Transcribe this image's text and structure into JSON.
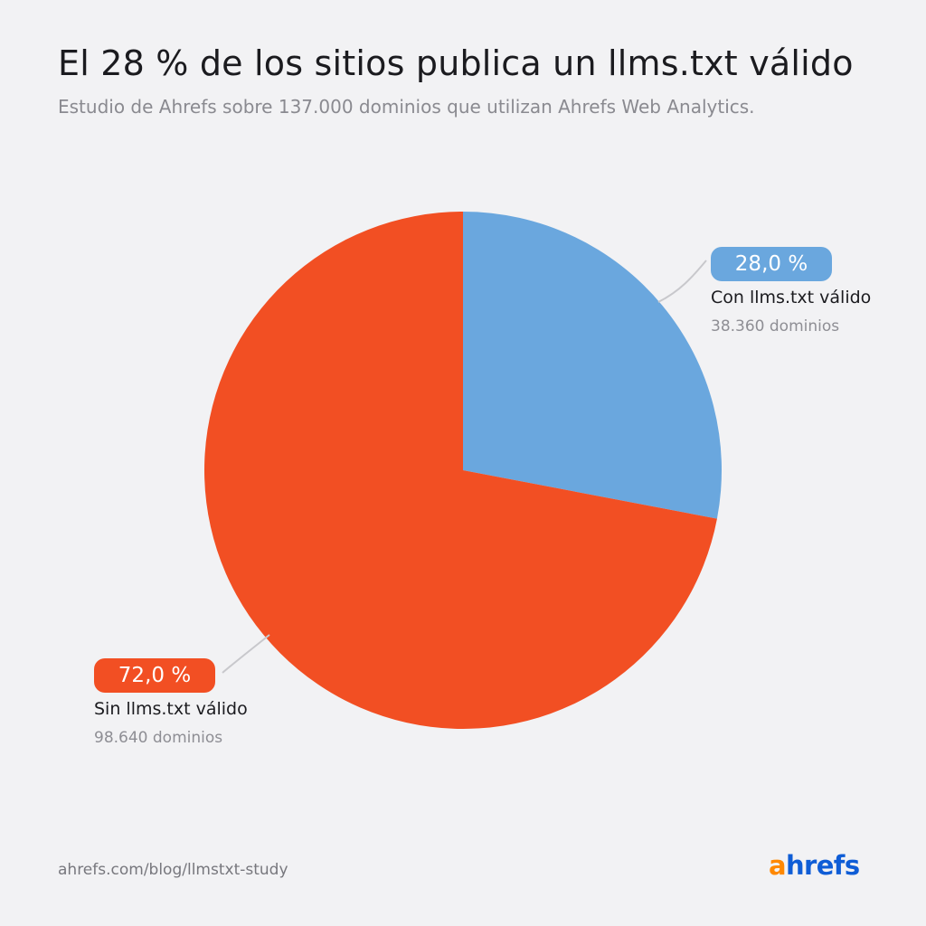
{
  "title": "El 28 % de los sitios publica un llms.txt válido",
  "subtitle": "Estudio de Ahrefs sobre 137.000 dominios que utilizan Ahrefs Web Analytics.",
  "chart_data": {
    "type": "pie",
    "title": "El 28 % de los sitios publica un llms.txt válido",
    "subtitle": "Estudio de Ahrefs sobre 137.000 dominios que utilizan Ahrefs Web Analytics.",
    "slices": [
      {
        "label": "Con llms.txt válido",
        "value": 28.0,
        "value_label": "28,0 %",
        "count_label": "38.360 dominios",
        "color": "#6aa7de"
      },
      {
        "label": "Sin llms.txt válido",
        "value": 72.0,
        "value_label": "72,0 %",
        "count_label": "98.640 dominios",
        "color": "#f24f23"
      }
    ],
    "start_angle": "12 o'clock",
    "direction": "clockwise"
  },
  "footer": {
    "url": "ahrefs.com/blog/llmstxt-study",
    "logo_text": "ahrefs",
    "logo_colors": {
      "a": "#ff8800",
      "rest": "#0f5dd6"
    }
  }
}
